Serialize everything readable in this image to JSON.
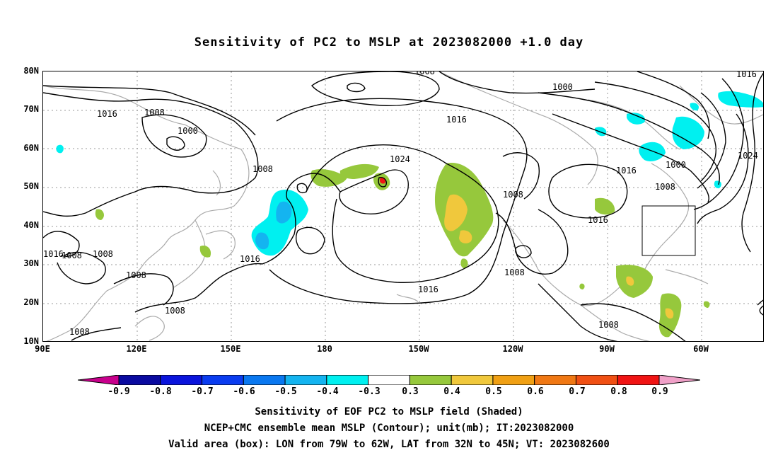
{
  "title": "Sensitivity of PC2 to MSLP at 2023082000 +1.0 day",
  "latitude_labels": [
    "80N",
    "70N",
    "60N",
    "50N",
    "40N",
    "30N",
    "20N",
    "10N"
  ],
  "longitude_labels": [
    "90E",
    "120E",
    "150E",
    "180",
    "150W",
    "120W",
    "90W",
    "60W"
  ],
  "contour_labels": [
    "1008",
    "1016",
    "1016",
    "1008",
    "1000",
    "1008",
    "1024",
    "1016",
    "1000",
    "1016",
    "1016",
    "1000",
    "1008",
    "1008",
    "1016",
    "1008",
    "1016",
    "1008",
    "1008",
    "1008",
    "1008",
    "1016",
    "1008",
    "1008",
    "1024"
  ],
  "colorbar": {
    "labels": [
      "-0.9",
      "-0.8",
      "-0.7",
      "-0.6",
      "-0.5",
      "-0.4",
      "-0.3",
      "0.3",
      "0.4",
      "0.5",
      "0.6",
      "0.7",
      "0.8",
      "0.9"
    ],
    "colors": [
      "#c8008c",
      "#0a0aa0",
      "#0a14dc",
      "#0a3cf0",
      "#0a78f0",
      "#14b4f0",
      "#00f0f0",
      "#ffffff",
      "#96c83c",
      "#f0c83c",
      "#f0a014",
      "#f07814",
      "#f05014",
      "#f01414",
      "#f0a0c8"
    ]
  },
  "captions": {
    "line1": "Sensitivity of EOF PC2 to MSLP field (Shaded)",
    "line2": "NCEP+CMC ensemble mean MSLP (Contour); unit(mb); IT:2023082000",
    "line3": "Valid area (box): LON from 79W to 62W, LAT from 32N to 45N; VT: 2023082600"
  }
}
